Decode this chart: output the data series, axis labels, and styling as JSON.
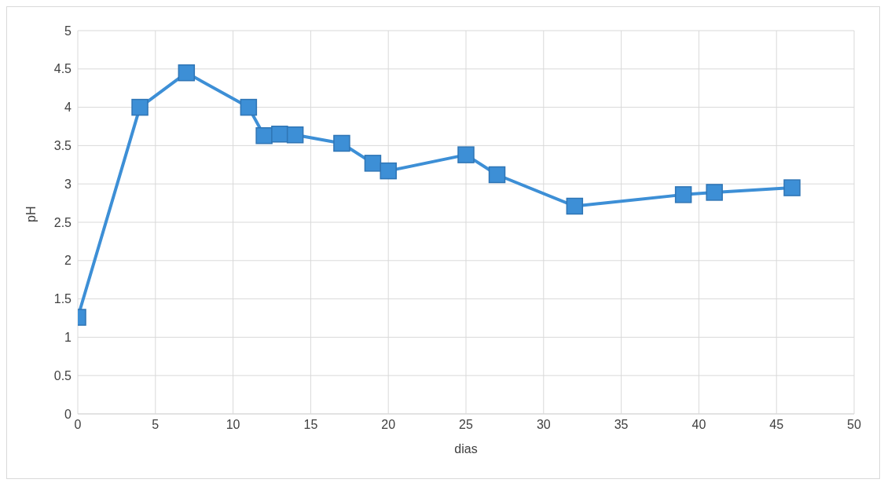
{
  "chart_data": {
    "type": "line",
    "xlabel": "dias",
    "ylabel": "pH",
    "x": [
      0,
      4,
      7,
      11,
      12,
      13,
      14,
      17,
      19,
      20,
      25,
      27,
      32,
      39,
      41,
      46
    ],
    "series": [
      {
        "color": "#3d8fd6",
        "values": [
          1.26,
          4.0,
          4.45,
          4.0,
          3.63,
          3.65,
          3.64,
          3.53,
          3.27,
          3.17,
          3.38,
          3.12,
          2.71,
          2.86,
          2.89,
          2.95
        ]
      }
    ],
    "xlim": [
      0,
      50
    ],
    "xticks": [
      0,
      5,
      10,
      15,
      20,
      25,
      30,
      35,
      40,
      45,
      50
    ],
    "ylim": [
      0,
      5
    ],
    "yticks": [
      0,
      0.5,
      1,
      1.5,
      2,
      2.5,
      3,
      3.5,
      4,
      4.5,
      5
    ],
    "grid": true,
    "marker": "square",
    "line_style": "solid"
  }
}
